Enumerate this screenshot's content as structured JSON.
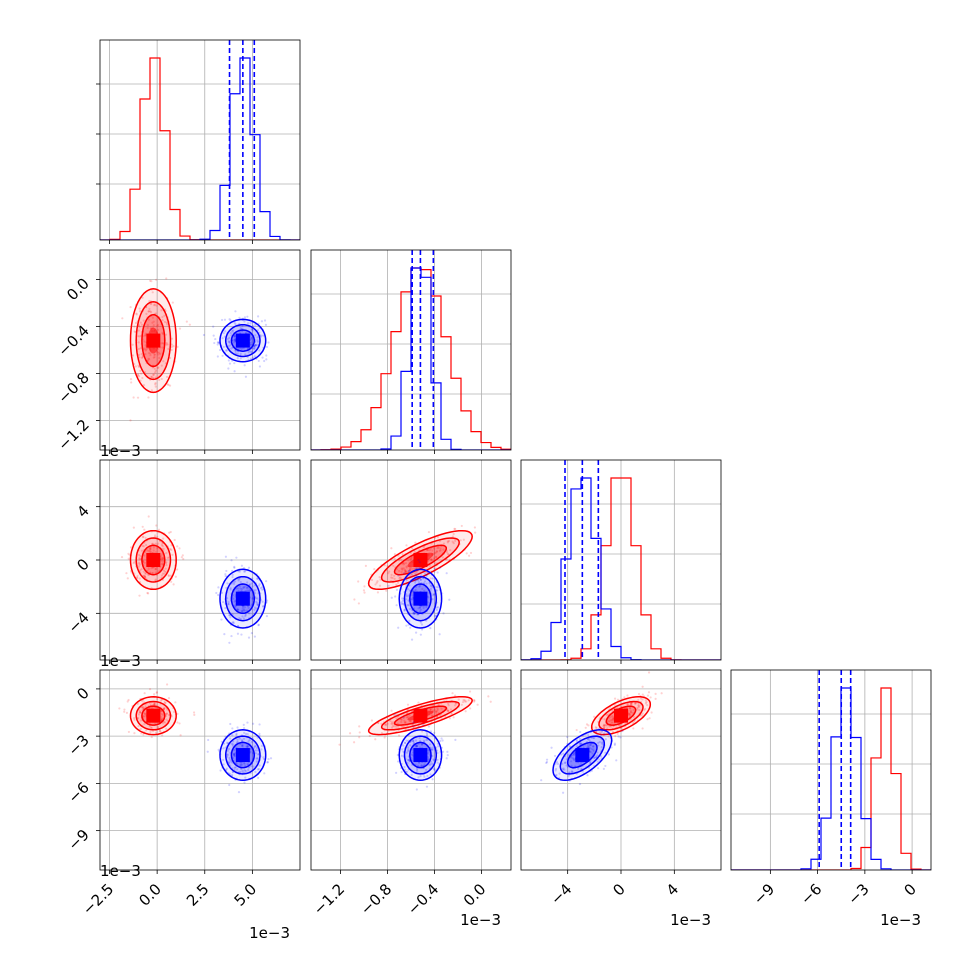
{
  "chart_data": {
    "type": "corner",
    "grid": true,
    "series": [
      {
        "color": "#ff0000",
        "mean": [
          -0.0002,
          -0.00052,
          0.0,
          -0.0017
        ],
        "std": [
          0.0006,
          0.00022,
          0.0011,
          0.0006
        ],
        "corr_pairs": [
          {
            "i": 2,
            "j": 1,
            "r": 0.8
          },
          {
            "i": 3,
            "j": 1,
            "r": 0.8
          },
          {
            "i": 3,
            "j": 2,
            "r": 0.6
          }
        ]
      },
      {
        "color": "#0000ff",
        "mean": [
          0.0045,
          -0.00052,
          -0.0029,
          -0.0042
        ],
        "std": [
          0.0006,
          9e-05,
          0.0011,
          0.0008
        ],
        "corr_pairs": [
          {
            "i": 3,
            "j": 2,
            "r": 0.6
          }
        ],
        "quantile_lines": [
          [
            0.0038,
            0.0045,
            0.0051
          ],
          [
            -0.00059,
            -0.00052,
            -0.00041
          ],
          [
            -0.0042,
            -0.0029,
            -0.0017
          ],
          [
            -0.0059,
            -0.0045,
            -0.0039
          ]
        ]
      }
    ],
    "axes": [
      {
        "range": [
          -0.003,
          0.0075
        ],
        "ticks": [
          -0.0025,
          0.0,
          0.0025,
          0.005
        ],
        "tick_labels": [
          "−2.5",
          "0.0",
          "2.5",
          "5.0"
        ],
        "offset": "1e−3"
      },
      {
        "range": [
          -0.00145,
          0.00025
        ],
        "ticks": [
          -0.0012,
          -0.0008,
          -0.0004,
          0.0
        ],
        "tick_labels": [
          "−1.2",
          "−0.8",
          "−0.4",
          "0.0"
        ],
        "offset": "1e−3"
      },
      {
        "range": [
          -0.0075,
          0.0075
        ],
        "ticks": [
          -0.004,
          0.0,
          0.004
        ],
        "tick_labels": [
          "−4",
          "0",
          "4"
        ],
        "offset": "1e−3"
      },
      {
        "range": [
          -0.0115,
          0.0012
        ],
        "ticks": [
          -0.009,
          -0.006,
          -0.003,
          0.0
        ],
        "tick_labels": [
          "−9",
          "−6",
          "−3",
          "0"
        ],
        "offset": "1e−3"
      }
    ]
  }
}
